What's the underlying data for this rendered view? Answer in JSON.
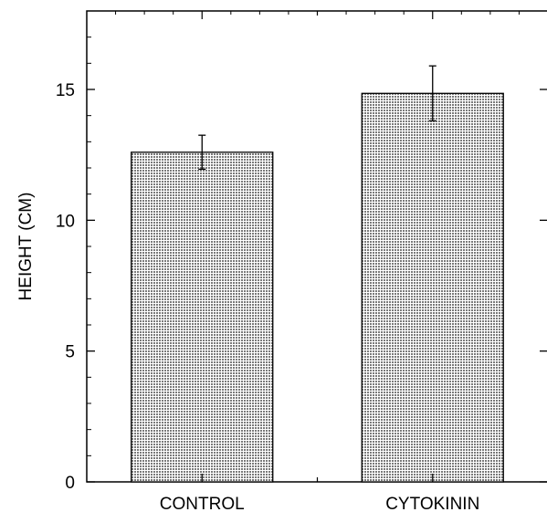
{
  "chart_data": {
    "type": "bar",
    "title": "",
    "xlabel": "",
    "ylabel": "HEIGHT (CM)",
    "categories": [
      "CONTROL",
      "CYTOKININ"
    ],
    "values": [
      12.6,
      14.85
    ],
    "errors": [
      0.65,
      1.05
    ],
    "ylim": [
      0,
      18
    ],
    "yticks": [
      0,
      5,
      10,
      15
    ],
    "grid": false,
    "bar_fill": "#bdbdbd",
    "bar_stroke": "#000000"
  }
}
